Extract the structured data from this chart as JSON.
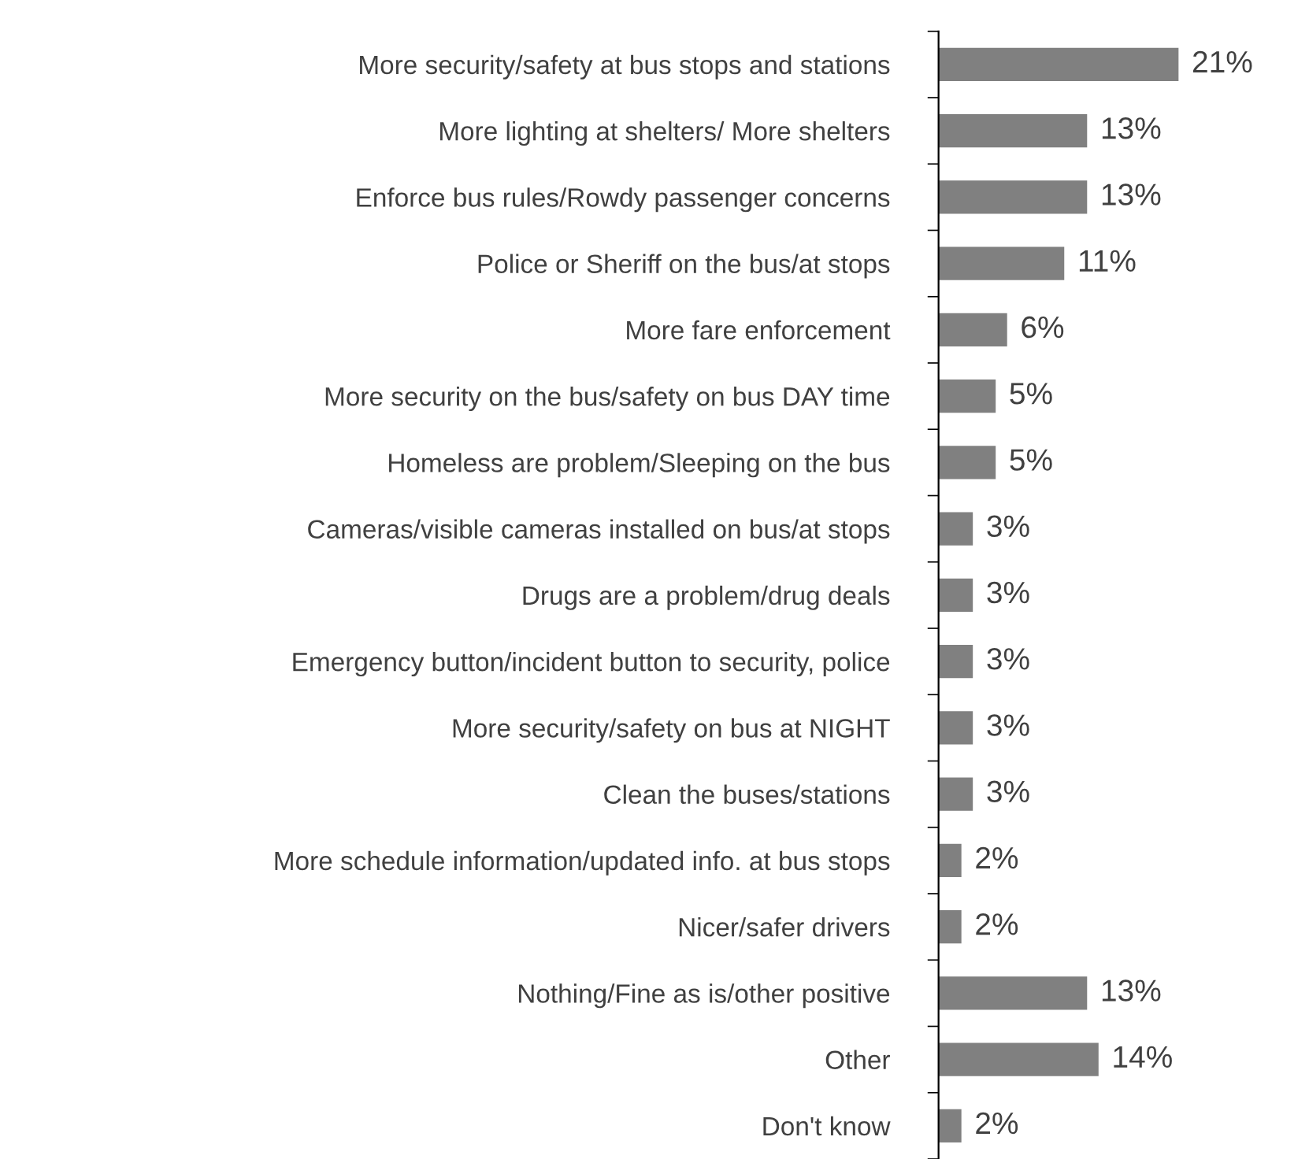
{
  "chart_data": {
    "type": "bar",
    "orientation": "horizontal",
    "categories": [
      "More security/safety at bus stops and stations",
      "More lighting at shelters/ More shelters",
      "Enforce bus rules/Rowdy passenger concerns",
      "Police or Sheriff on the bus/at stops",
      "More fare enforcement",
      "More security on the bus/safety on bus DAY time",
      "Homeless are problem/Sleeping on the bus",
      "Cameras/visible cameras installed on bus/at stops",
      "Drugs are a problem/drug deals",
      "Emergency button/incident button to security, police",
      "More security/safety on bus at NIGHT",
      "Clean the buses/stations",
      "More schedule information/updated info. at bus stops",
      "Nicer/safer drivers",
      "Nothing/Fine as is/other positive",
      "Other",
      "Don't know"
    ],
    "values": [
      21,
      13,
      13,
      11,
      6,
      5,
      5,
      3,
      3,
      3,
      3,
      3,
      2,
      2,
      13,
      14,
      2
    ],
    "value_labels": [
      "21%",
      "13%",
      "13%",
      "11%",
      "6%",
      "5%",
      "5%",
      "3%",
      "3%",
      "3%",
      "3%",
      "3%",
      "2%",
      "2%",
      "13%",
      "14%",
      "2%"
    ],
    "color": "#808080",
    "grid": false,
    "legend": false,
    "tick_labels": "y"
  }
}
